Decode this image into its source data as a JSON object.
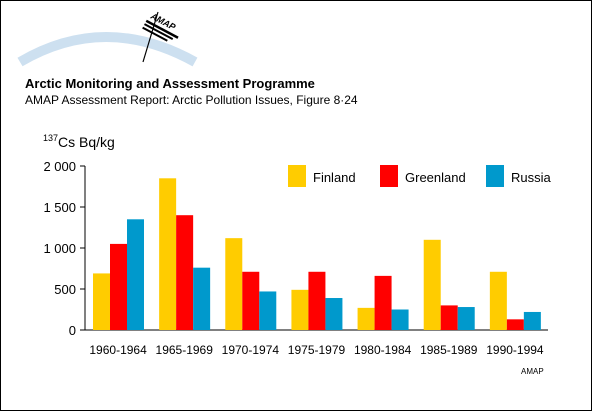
{
  "header": {
    "logo_text": "AMAP",
    "title": "Arctic Monitoring and Assessment Programme",
    "subtitle": "AMAP Assessment Report: Arctic Pollution Issues, Figure 8·24"
  },
  "credit": "AMAP",
  "colors": {
    "Finland": "#FFCC00",
    "Greenland": "#FF0000",
    "Russia": "#0099CC"
  },
  "chart_data": {
    "type": "bar",
    "ylabel_sup": "137",
    "ylabel": "Cs Bq/kg",
    "xlabel": "",
    "ylim": [
      0,
      2000
    ],
    "yticks": [
      0,
      500,
      1000,
      1500,
      2000
    ],
    "ytick_labels": [
      "0",
      "500",
      "1 000",
      "1 500",
      "2 000"
    ],
    "grid": false,
    "legend_position": "top-right",
    "categories": [
      "1960-1964",
      "1965-1969",
      "1970-1974",
      "1975-1979",
      "1980-1984",
      "1985-1989",
      "1990-1994"
    ],
    "series": [
      {
        "name": "Finland",
        "values": [
          690,
          1850,
          1120,
          490,
          270,
          1100,
          710
        ]
      },
      {
        "name": "Greenland",
        "values": [
          1050,
          1400,
          710,
          710,
          660,
          300,
          130
        ]
      },
      {
        "name": "Russia",
        "values": [
          1350,
          760,
          470,
          390,
          250,
          280,
          220
        ]
      }
    ]
  }
}
